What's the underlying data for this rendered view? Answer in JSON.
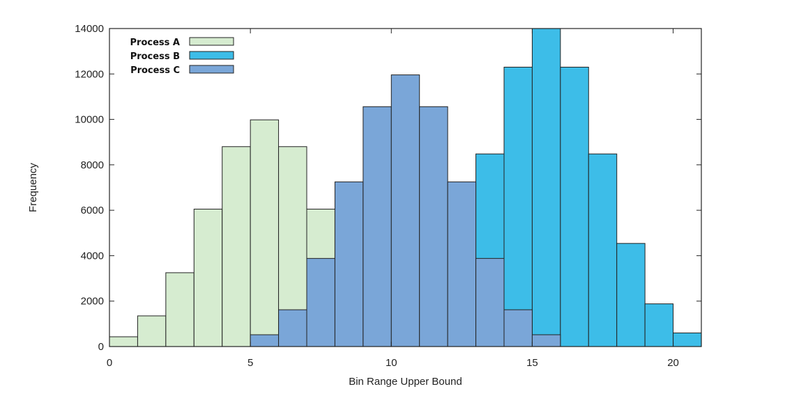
{
  "chart_data": {
    "type": "bar",
    "xlabel": "Bin Range Upper Bound",
    "ylabel": "Frequency",
    "xlim": [
      0,
      21
    ],
    "ylim": [
      0,
      14000
    ],
    "x_ticks": [
      0,
      5,
      10,
      15,
      20
    ],
    "y_ticks": [
      0,
      2000,
      4000,
      6000,
      8000,
      10000,
      12000,
      14000
    ],
    "grid": false,
    "legend_placement": "top-left",
    "series": [
      {
        "name": "Process A",
        "color": "#d6ecd0",
        "bins": [
          {
            "x0": 0,
            "x1": 1,
            "value": 430
          },
          {
            "x0": 1,
            "x1": 2,
            "value": 1350
          },
          {
            "x0": 2,
            "x1": 3,
            "value": 3250
          },
          {
            "x0": 3,
            "x1": 4,
            "value": 6050
          },
          {
            "x0": 4,
            "x1": 5,
            "value": 8800
          },
          {
            "x0": 5,
            "x1": 6,
            "value": 9980
          },
          {
            "x0": 6,
            "x1": 7,
            "value": 8800
          },
          {
            "x0": 7,
            "x1": 8,
            "value": 6050
          }
        ]
      },
      {
        "name": "Process B",
        "color": "#3dbde8",
        "bins": [
          {
            "x0": 13,
            "x1": 14,
            "value": 8480
          },
          {
            "x0": 14,
            "x1": 15,
            "value": 12300
          },
          {
            "x0": 15,
            "x1": 16,
            "value": 14000
          },
          {
            "x0": 16,
            "x1": 17,
            "value": 12300
          },
          {
            "x0": 17,
            "x1": 18,
            "value": 8480
          },
          {
            "x0": 18,
            "x1": 19,
            "value": 4540
          },
          {
            "x0": 19,
            "x1": 20,
            "value": 1880
          },
          {
            "x0": 20,
            "x1": 21,
            "value": 600
          }
        ]
      },
      {
        "name": "Process C",
        "color": "#7aa6d8",
        "bins": [
          {
            "x0": 5,
            "x1": 6,
            "value": 520
          },
          {
            "x0": 6,
            "x1": 7,
            "value": 1620
          },
          {
            "x0": 7,
            "x1": 8,
            "value": 3880
          },
          {
            "x0": 8,
            "x1": 9,
            "value": 7250
          },
          {
            "x0": 9,
            "x1": 10,
            "value": 10560
          },
          {
            "x0": 10,
            "x1": 11,
            "value": 11960
          },
          {
            "x0": 11,
            "x1": 12,
            "value": 10560
          },
          {
            "x0": 12,
            "x1": 13,
            "value": 7250
          },
          {
            "x0": 13,
            "x1": 14,
            "value": 3880
          },
          {
            "x0": 14,
            "x1": 15,
            "value": 1620
          },
          {
            "x0": 15,
            "x1": 16,
            "value": 520
          }
        ]
      }
    ]
  }
}
